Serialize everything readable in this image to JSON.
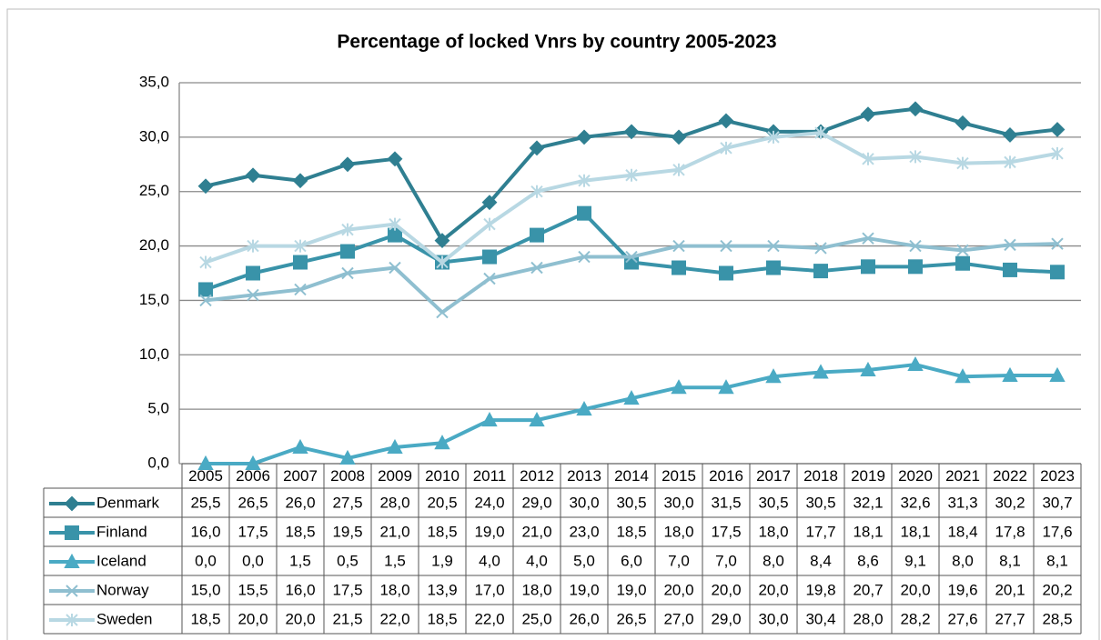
{
  "chart_data": {
    "type": "line",
    "title": "Percentage of locked Vnrs by country 2005-2023",
    "categories": [
      "2005",
      "2006",
      "2007",
      "2008",
      "2009",
      "2010",
      "2011",
      "2012",
      "2013",
      "2014",
      "2015",
      "2016",
      "2017",
      "2018",
      "2019",
      "2020",
      "2021",
      "2022",
      "2023"
    ],
    "ylim": [
      0,
      35
    ],
    "yticks": [
      {
        "value": 0,
        "label": "0,0"
      },
      {
        "value": 5,
        "label": "5,0"
      },
      {
        "value": 10,
        "label": "10,0"
      },
      {
        "value": 15,
        "label": "15,0"
      },
      {
        "value": 20,
        "label": "20,0"
      },
      {
        "value": 25,
        "label": "25,0"
      },
      {
        "value": 30,
        "label": "30,0"
      },
      {
        "value": 35,
        "label": "35,0"
      }
    ],
    "grid": true,
    "series": [
      {
        "name": "Denmark",
        "color": "#2f7f91",
        "marker": "diamond",
        "values": [
          25.5,
          26.5,
          26.0,
          27.5,
          28.0,
          20.5,
          24.0,
          29.0,
          30.0,
          30.5,
          30.0,
          31.5,
          30.5,
          30.5,
          32.1,
          32.6,
          31.3,
          30.2,
          30.7
        ],
        "value_labels": [
          "25,5",
          "26,5",
          "26,0",
          "27,5",
          "28,0",
          "20,5",
          "24,0",
          "29,0",
          "30,0",
          "30,5",
          "30,0",
          "31,5",
          "30,5",
          "30,5",
          "32,1",
          "32,6",
          "31,3",
          "30,2",
          "30,7"
        ]
      },
      {
        "name": "Finland",
        "color": "#3993a9",
        "marker": "square",
        "values": [
          16.0,
          17.5,
          18.5,
          19.5,
          21.0,
          18.5,
          19.0,
          21.0,
          23.0,
          18.5,
          18.0,
          17.5,
          18.0,
          17.7,
          18.1,
          18.1,
          18.4,
          17.8,
          17.6
        ],
        "value_labels": [
          "16,0",
          "17,5",
          "18,5",
          "19,5",
          "21,0",
          "18,5",
          "19,0",
          "21,0",
          "23,0",
          "18,5",
          "18,0",
          "17,5",
          "18,0",
          "17,7",
          "18,1",
          "18,1",
          "18,4",
          "17,8",
          "17,6"
        ]
      },
      {
        "name": "Iceland",
        "color": "#4aaac4",
        "marker": "triangle",
        "values": [
          0.0,
          0.0,
          1.5,
          0.5,
          1.5,
          1.9,
          4.0,
          4.0,
          5.0,
          6.0,
          7.0,
          7.0,
          8.0,
          8.4,
          8.6,
          9.1,
          8.0,
          8.1,
          8.1
        ],
        "value_labels": [
          "0,0",
          "0,0",
          "1,5",
          "0,5",
          "1,5",
          "1,9",
          "4,0",
          "4,0",
          "5,0",
          "6,0",
          "7,0",
          "7,0",
          "8,0",
          "8,4",
          "8,6",
          "9,1",
          "8,0",
          "8,1",
          "8,1"
        ]
      },
      {
        "name": "Norway",
        "color": "#8fbfd0",
        "marker": "x",
        "values": [
          15.0,
          15.5,
          16.0,
          17.5,
          18.0,
          13.9,
          17.0,
          18.0,
          19.0,
          19.0,
          20.0,
          20.0,
          20.0,
          19.8,
          20.7,
          20.0,
          19.6,
          20.1,
          20.2
        ],
        "value_labels": [
          "15,0",
          "15,5",
          "16,0",
          "17,5",
          "18,0",
          "13,9",
          "17,0",
          "18,0",
          "19,0",
          "19,0",
          "20,0",
          "20,0",
          "20,0",
          "19,8",
          "20,7",
          "20,0",
          "19,6",
          "20,1",
          "20,2"
        ]
      },
      {
        "name": "Sweden",
        "color": "#b8d8e3",
        "marker": "star",
        "values": [
          18.5,
          20.0,
          20.0,
          21.5,
          22.0,
          18.5,
          22.0,
          25.0,
          26.0,
          26.5,
          27.0,
          29.0,
          30.0,
          30.4,
          28.0,
          28.2,
          27.6,
          27.7,
          28.5
        ],
        "value_labels": [
          "18,5",
          "20,0",
          "20,0",
          "21,5",
          "22,0",
          "18,5",
          "22,0",
          "25,0",
          "26,0",
          "26,5",
          "27,0",
          "29,0",
          "30,0",
          "30,4",
          "28,0",
          "28,2",
          "27,6",
          "27,7",
          "28,5"
        ]
      }
    ]
  }
}
